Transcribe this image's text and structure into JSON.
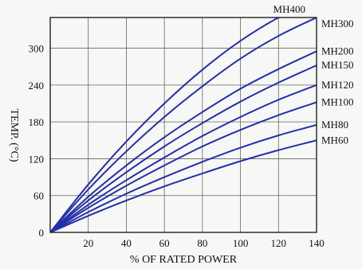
{
  "chart_data": {
    "type": "line",
    "xlabel": "% OF RATED POWER",
    "ylabel": "TEMP. (°C)",
    "xlim": [
      0,
      140
    ],
    "ylim": [
      0,
      350
    ],
    "x_ticks": [
      20,
      40,
      60,
      80,
      100,
      120,
      140
    ],
    "y_ticks": [
      0,
      60,
      120,
      180,
      240,
      300
    ],
    "grid": true,
    "line_color": "#2430a8",
    "x": [
      0,
      20,
      40,
      60,
      80,
      100,
      120,
      140
    ],
    "series": [
      {
        "name": "MH400",
        "values": [
          0,
          78,
          148,
          210,
          265,
          312,
          350,
          380
        ]
      },
      {
        "name": "MH300",
        "values": [
          0,
          70,
          132,
          188,
          238,
          283,
          320,
          350
        ]
      },
      {
        "name": "MH200",
        "values": [
          0,
          58,
          109,
          155,
          196,
          234,
          266,
          295
        ]
      },
      {
        "name": "MH150",
        "values": [
          0,
          52,
          98,
          140,
          178,
          213,
          244,
          272
        ]
      },
      {
        "name": "MH120",
        "values": [
          0,
          45,
          85,
          122,
          157,
          188,
          216,
          240
        ]
      },
      {
        "name": "MH100",
        "values": [
          0,
          40,
          76,
          109,
          140,
          167,
          191,
          212
        ]
      },
      {
        "name": "MH80",
        "values": [
          0,
          33,
          63,
          90,
          115,
          138,
          158,
          175
        ]
      },
      {
        "name": "MH60",
        "values": [
          0,
          27,
          52,
          75,
          96,
          116,
          134,
          150
        ]
      }
    ]
  }
}
